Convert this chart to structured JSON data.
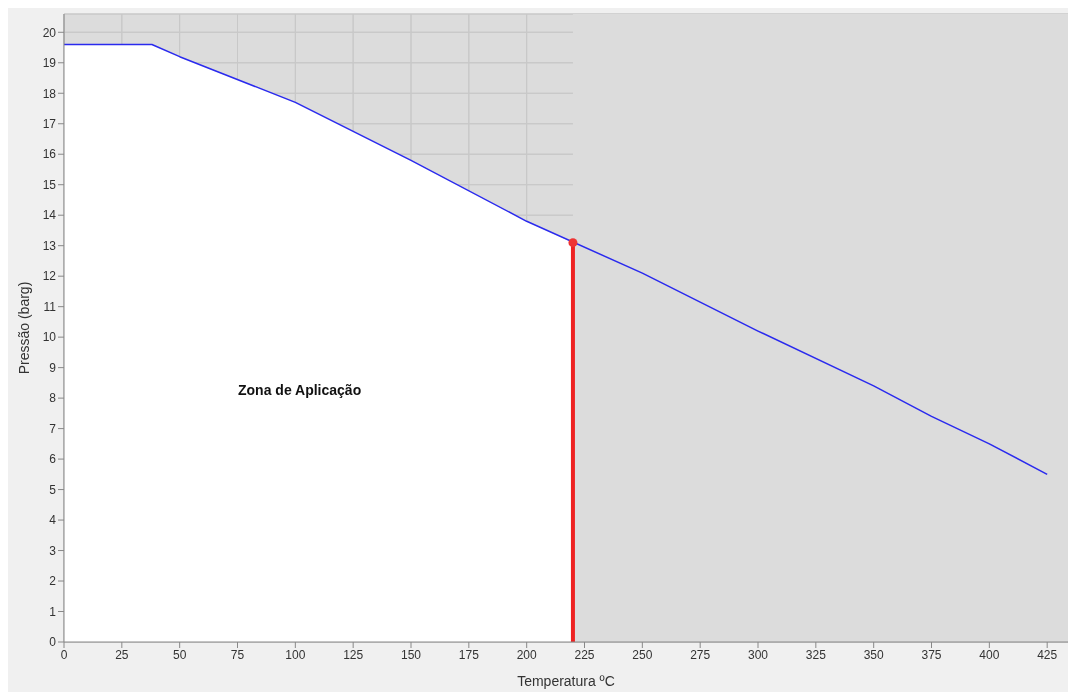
{
  "chart_data": {
    "type": "line",
    "xlabel": "Temperatura  ºC",
    "ylabel": "Pressão (barg)",
    "annotations": [
      "Zona de Aplicação"
    ],
    "xlim": [
      0,
      434
    ],
    "xticks": [
      0,
      25,
      50,
      75,
      100,
      125,
      150,
      175,
      200,
      225,
      250,
      275,
      300,
      325,
      350,
      375,
      400,
      425
    ],
    "ylim": [
      0,
      20.6
    ],
    "yticks": [
      0,
      1,
      2,
      3,
      4,
      5,
      6,
      7,
      8,
      9,
      10,
      11,
      12,
      13,
      14,
      15,
      16,
      17,
      18,
      19,
      20
    ],
    "grid": true,
    "line_style": "solid",
    "series": [
      {
        "type": "area",
        "color": "#ffffff",
        "x": [
          0,
          38,
          50,
          100,
          150,
          200,
          220
        ],
        "values": [
          19.6,
          19.6,
          19.2,
          17.7,
          15.8,
          13.8,
          13.1
        ]
      },
      {
        "color": "#2a2aee",
        "x": [
          0,
          38,
          50,
          100,
          150,
          200,
          250,
          300,
          350,
          375,
          400,
          425
        ],
        "values": [
          19.6,
          19.6,
          19.2,
          17.7,
          15.8,
          13.8,
          12.1,
          10.2,
          8.4,
          7.4,
          6.5,
          5.5
        ]
      },
      {
        "color": "#ee2222",
        "x": [
          220,
          220
        ],
        "values": [
          0,
          13.1
        ]
      },
      {
        "type": "scatter",
        "color": "#ee3333",
        "x": [
          220
        ],
        "values": [
          13.1
        ]
      }
    ],
    "bands": [
      {
        "axis": "x",
        "from": 220,
        "to": 434,
        "color": "#dcdcdc"
      }
    ]
  }
}
